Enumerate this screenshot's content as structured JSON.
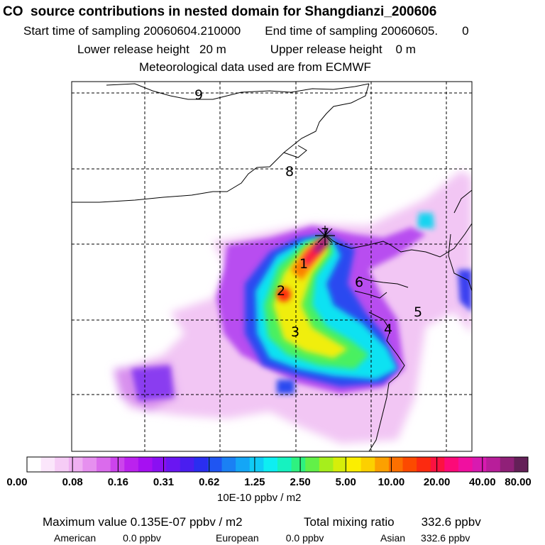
{
  "header": {
    "title": "CO  source contributions in nested domain for Shangdianzi_200606",
    "start_label": "Start time of sampling",
    "start_value": "20060604.210000",
    "end_label": "End time of sampling",
    "end_value": "20060605.",
    "end_suffix": "0",
    "lower_label": "Lower release height",
    "lower_value": "20 m",
    "upper_label": "Upper release height",
    "upper_value": "0 m",
    "met_line": "Meteorological data used are from ECMWF"
  },
  "map": {
    "contour_labels": [
      "9",
      "8",
      "7",
      "1",
      "2",
      "3",
      "6",
      "5",
      "4"
    ]
  },
  "colorbar": {
    "ticks": [
      "0.00",
      "0.08",
      "0.16",
      "0.31",
      "0.62",
      "1.25",
      "2.50",
      "5.00",
      "10.00",
      "20.00",
      "40.00",
      "80.00"
    ],
    "colors": [
      "#ffffff",
      "#fbe6fb",
      "#f6ccf6",
      "#efb0f2",
      "#e690ef",
      "#da6bec",
      "#cc44ec",
      "#bb22ee",
      "#a610f2",
      "#8a10f2",
      "#6a16f2",
      "#4a1ef0",
      "#2a2ef0",
      "#1f55f2",
      "#1a80f4",
      "#14a6f6",
      "#10ccf6",
      "#0eeef2",
      "#16f2c0",
      "#2ef280",
      "#62f048",
      "#a6ee1c",
      "#d6ee0a",
      "#fbee00",
      "#fcd000",
      "#fca000",
      "#fc7000",
      "#fc4a00",
      "#fc2a10",
      "#fc1240",
      "#fc0a78",
      "#f010a0",
      "#d81ab0",
      "#b81e9a",
      "#902078",
      "#642058"
    ],
    "unit": "10E-10 ppbv / m2"
  },
  "footer": {
    "max_label": "Maximum value",
    "max_value": "0.135E-07 ppbv / m2",
    "total_label": "Total mixing ratio",
    "total_value": "332.6 ppbv",
    "american_label": "American",
    "american_value": "0.0 ppbv",
    "european_label": "European",
    "european_value": "0.0 ppbv",
    "asian_label": "Asian",
    "asian_value": "332.6 ppbv"
  }
}
